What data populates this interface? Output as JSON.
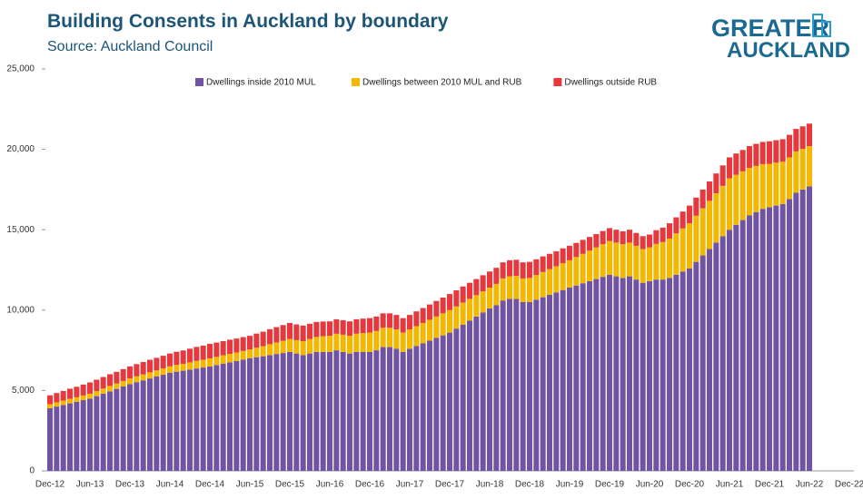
{
  "chart_data": {
    "type": "stacked_bar",
    "title": "Building Consents in Auckland by boundary",
    "subtitle": "Source: Auckland Council",
    "logo": [
      "GREATER",
      "AUCKLAND"
    ],
    "categories": [
      "Dec-12",
      null,
      null,
      null,
      null,
      null,
      "Jun-13",
      null,
      null,
      null,
      null,
      null,
      "Dec-13",
      null,
      null,
      null,
      null,
      null,
      "Jun-14",
      null,
      null,
      null,
      null,
      null,
      "Dec-14",
      null,
      null,
      null,
      null,
      null,
      "Jun-15",
      null,
      null,
      null,
      null,
      null,
      "Dec-15",
      null,
      null,
      null,
      null,
      null,
      "Jun-16",
      null,
      null,
      null,
      null,
      null,
      "Dec-16",
      null,
      null,
      null,
      null,
      null,
      "Jun-17",
      null,
      null,
      null,
      null,
      null,
      "Dec-17",
      null,
      null,
      null,
      null,
      null,
      "Jun-18",
      null,
      null,
      null,
      null,
      null,
      "Dec-18",
      null,
      null,
      null,
      null,
      null,
      "Jun-19",
      null,
      null,
      null,
      null,
      null,
      "Dec-19",
      null,
      null,
      null,
      null,
      null,
      "Jun-20",
      null,
      null,
      null,
      null,
      null,
      "Dec-20",
      null,
      null,
      null,
      null,
      null,
      "Jun-21",
      null,
      null,
      null,
      null,
      null,
      "Dec-21",
      null,
      null,
      null,
      null,
      null,
      "Jun-22",
      null,
      null,
      null,
      null,
      null,
      "Dec-22"
    ],
    "series": [
      {
        "name": "Dwellings inside 2010 MUL",
        "color": "#7153a4",
        "values": [
          3900,
          4000,
          4100,
          4200,
          4300,
          4400,
          4500,
          4650,
          4800,
          4950,
          5100,
          5250,
          5400,
          5520,
          5630,
          5750,
          5870,
          5980,
          6100,
          6170,
          6230,
          6300,
          6370,
          6430,
          6500,
          6580,
          6670,
          6750,
          6830,
          6920,
          7000,
          7070,
          7130,
          7200,
          7270,
          7330,
          7400,
          7300,
          7200,
          7300,
          7400,
          7400,
          7400,
          7500,
          7400,
          7300,
          7400,
          7400,
          7400,
          7500,
          7700,
          7700,
          7600,
          7400,
          7600,
          7770,
          7930,
          8100,
          8270,
          8430,
          8600,
          8850,
          9100,
          9350,
          9600,
          9850,
          10100,
          10300,
          10600,
          10700,
          10700,
          10500,
          10500,
          10650,
          10800,
          10950,
          11100,
          11250,
          11400,
          11530,
          11670,
          11800,
          11930,
          12070,
          12200,
          12100,
          12000,
          12100,
          11900,
          11700,
          11800,
          11900,
          11900,
          12000,
          12200,
          12400,
          12600,
          13000,
          13400,
          13800,
          14200,
          14600,
          15000,
          15300,
          15600,
          15900,
          16100,
          16300,
          16400,
          16500,
          16600,
          16900,
          17300,
          17500,
          17700,
          null,
          null,
          null,
          null,
          null,
          null
        ]
      },
      {
        "name": "Dwellings between 2010 MUL and RUB",
        "color": "#f5b800",
        "values": [
          250,
          260,
          270,
          280,
          280,
          290,
          300,
          310,
          320,
          330,
          330,
          340,
          350,
          360,
          370,
          380,
          380,
          390,
          400,
          420,
          430,
          450,
          470,
          480,
          500,
          510,
          520,
          530,
          530,
          540,
          550,
          590,
          630,
          680,
          720,
          760,
          800,
          830,
          870,
          900,
          930,
          970,
          1000,
          1030,
          1070,
          1100,
          1130,
          1170,
          1200,
          1200,
          1200,
          1200,
          1200,
          1200,
          1200,
          1230,
          1270,
          1300,
          1330,
          1370,
          1400,
          1380,
          1370,
          1350,
          1330,
          1320,
          1300,
          1330,
          1370,
          1400,
          1430,
          1470,
          1500,
          1530,
          1570,
          1600,
          1630,
          1670,
          1700,
          1770,
          1830,
          1900,
          1970,
          2030,
          2100,
          2100,
          2100,
          2100,
          2100,
          2100,
          2100,
          2220,
          2330,
          2450,
          2570,
          2680,
          2800,
          2870,
          2930,
          3000,
          3070,
          3130,
          3200,
          3120,
          3030,
          2950,
          2870,
          2780,
          2700,
          2670,
          2630,
          2600,
          2570,
          2530,
          2500,
          null,
          null,
          null,
          null,
          null,
          null
        ]
      },
      {
        "name": "Dwellings outside RUB",
        "color": "#e8383d",
        "values": [
          550,
          580,
          600,
          630,
          650,
          680,
          700,
          710,
          720,
          730,
          730,
          740,
          750,
          760,
          770,
          780,
          780,
          790,
          800,
          820,
          830,
          850,
          870,
          880,
          900,
          890,
          880,
          880,
          870,
          860,
          850,
          880,
          900,
          930,
          950,
          980,
          1000,
          980,
          970,
          950,
          930,
          920,
          900,
          900,
          900,
          900,
          900,
          900,
          900,
          900,
          900,
          900,
          900,
          900,
          900,
          920,
          930,
          950,
          970,
          980,
          1000,
          1000,
          1000,
          1000,
          1000,
          1000,
          1000,
          1000,
          1000,
          1000,
          1000,
          1000,
          1000,
          980,
          970,
          950,
          930,
          920,
          900,
          880,
          870,
          850,
          830,
          820,
          800,
          800,
          800,
          800,
          800,
          800,
          800,
          850,
          900,
          950,
          1000,
          1050,
          1100,
          1130,
          1170,
          1200,
          1230,
          1270,
          1300,
          1320,
          1330,
          1350,
          1370,
          1380,
          1400,
          1400,
          1400,
          1400,
          1400,
          1400,
          1400,
          null,
          null,
          null,
          null,
          null,
          null
        ]
      }
    ],
    "ylim": [
      0,
      25000
    ],
    "yticks": [
      0,
      {
        "value": 5000,
        "label": "5,000"
      },
      {
        "value": 10000,
        "label": "10,000"
      },
      {
        "value": 15000,
        "label": "15,000"
      },
      {
        "value": 20000,
        "label": "20,000"
      },
      {
        "value": 25000,
        "label": "25,000"
      }
    ],
    "grid": false,
    "legend": "top"
  }
}
